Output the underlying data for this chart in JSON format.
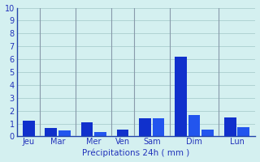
{
  "title": "",
  "xlabel": "Précipitations 24h ( mm )",
  "ylabel": "",
  "ylim": [
    0,
    10
  ],
  "yticks": [
    0,
    1,
    2,
    3,
    4,
    5,
    6,
    7,
    8,
    9,
    10
  ],
  "background_color": "#d4f0f0",
  "bar_color_dark": "#1030cc",
  "bar_color_light": "#2255ee",
  "grid_color": "#aacece",
  "sep_color": "#8899aa",
  "axis_label_color": "#2233bb",
  "tick_color": "#2233bb",
  "groups": [
    {
      "label": "Jeu",
      "bars": [
        1.2
      ]
    },
    {
      "label": "Mar",
      "bars": [
        0.65,
        0.45
      ]
    },
    {
      "label": "Mer",
      "bars": [
        1.1,
        0.35
      ]
    },
    {
      "label": "Ven",
      "bars": [
        0.5
      ]
    },
    {
      "label": "Sam",
      "bars": [
        1.4,
        1.4
      ]
    },
    {
      "label": "Dim",
      "bars": [
        6.2,
        1.65,
        0.55
      ]
    },
    {
      "label": "Lun",
      "bars": [
        1.5,
        0.7
      ]
    }
  ]
}
